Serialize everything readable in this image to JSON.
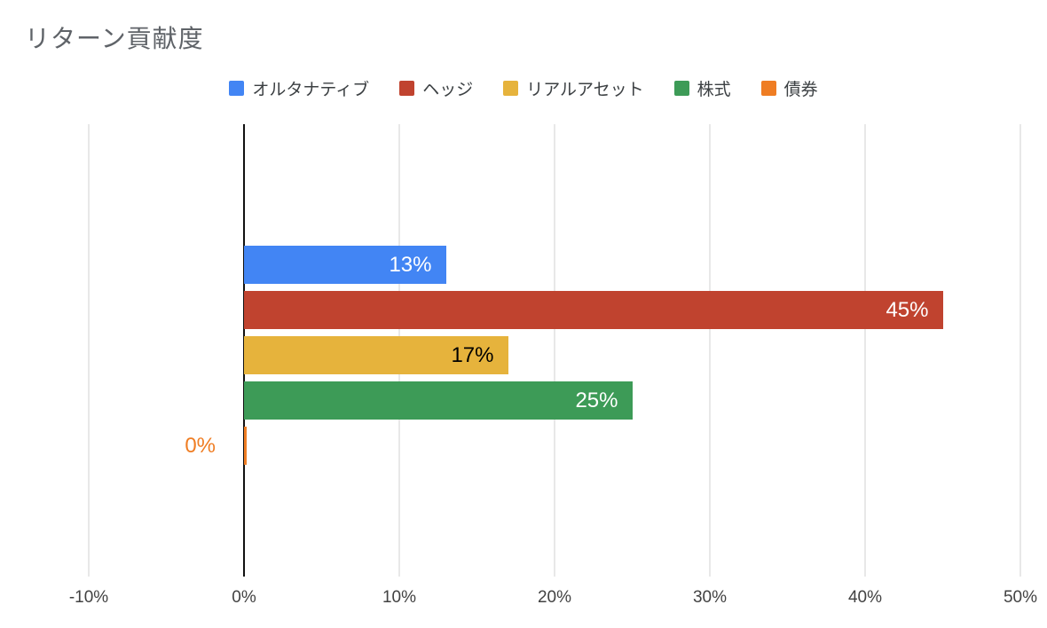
{
  "title": "リターン貢献度",
  "legend": {
    "items": [
      {
        "label": "オルタナティブ",
        "color": "#4285f4"
      },
      {
        "label": "ヘッジ",
        "color": "#c0432f"
      },
      {
        "label": "リアルアセット",
        "color": "#e6b33c"
      },
      {
        "label": "株式",
        "color": "#3d9b57"
      },
      {
        "label": "債券",
        "color": "#ef7d23"
      }
    ]
  },
  "chart_data": {
    "type": "bar",
    "orientation": "horizontal",
    "title": "リターン貢献度",
    "categories": [
      "オルタナティブ",
      "ヘッジ",
      "リアルアセット",
      "株式",
      "債券"
    ],
    "values": [
      13,
      45,
      17,
      25,
      0
    ],
    "value_labels": [
      "13%",
      "45%",
      "17%",
      "25%",
      "0%"
    ],
    "bar_colors": [
      "#4285f4",
      "#c0432f",
      "#e6b33c",
      "#3d9b57",
      "#ef7d23"
    ],
    "value_label_colors": [
      "#ffffff",
      "#ffffff",
      "#000000",
      "#ffffff",
      "#ef7d23"
    ],
    "value_label_inside": [
      true,
      true,
      true,
      true,
      false
    ],
    "xlim": [
      -10,
      50
    ],
    "x_ticks": [
      "-10%",
      "0%",
      "10%",
      "20%",
      "30%",
      "40%",
      "50%"
    ],
    "x_tick_values": [
      -10,
      0,
      10,
      20,
      30,
      40,
      50
    ],
    "grid": true,
    "legend_position": "top",
    "accent_colors": {
      "gridline": "#e8e8e8",
      "zero_axis": "#111111",
      "title_text": "#5f6368",
      "axis_text": "#424242",
      "legend_text": "#3c4043"
    }
  }
}
